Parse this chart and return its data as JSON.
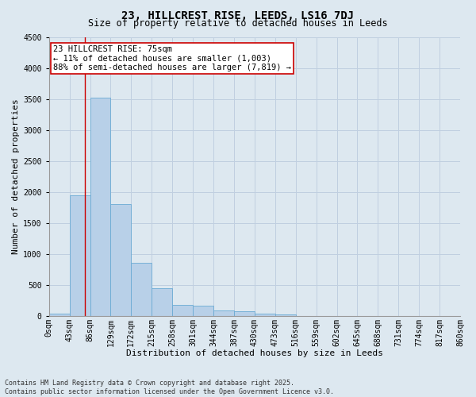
{
  "title": "23, HILLCREST RISE, LEEDS, LS16 7DJ",
  "subtitle": "Size of property relative to detached houses in Leeds",
  "xlabel": "Distribution of detached houses by size in Leeds",
  "ylabel": "Number of detached properties",
  "bar_values": [
    30,
    1950,
    3520,
    1800,
    850,
    440,
    175,
    170,
    90,
    70,
    40,
    25,
    0,
    0,
    0,
    0,
    0,
    0,
    0,
    0
  ],
  "bin_labels": [
    "0sqm",
    "43sqm",
    "86sqm",
    "129sqm",
    "172sqm",
    "215sqm",
    "258sqm",
    "301sqm",
    "344sqm",
    "387sqm",
    "430sqm",
    "473sqm",
    "516sqm",
    "559sqm",
    "602sqm",
    "645sqm",
    "688sqm",
    "731sqm",
    "774sqm",
    "817sqm",
    "860sqm"
  ],
  "bar_color": "#b8d0e8",
  "bar_edge_color": "#6aaad4",
  "grid_color": "#c0cfe0",
  "bg_color": "#dde8f0",
  "vline_x_bin": 1.75,
  "vline_color": "#cc0000",
  "annotation_text": "23 HILLCREST RISE: 75sqm\n← 11% of detached houses are smaller (1,003)\n88% of semi-detached houses are larger (7,819) →",
  "annotation_box_facecolor": "#ffffff",
  "annotation_border_color": "#cc0000",
  "ylim": [
    0,
    4500
  ],
  "yticks": [
    0,
    500,
    1000,
    1500,
    2000,
    2500,
    3000,
    3500,
    4000,
    4500
  ],
  "n_bins": 20,
  "bin_width": 43,
  "footnote": "Contains HM Land Registry data © Crown copyright and database right 2025.\nContains public sector information licensed under the Open Government Licence v3.0.",
  "title_fontsize": 10,
  "subtitle_fontsize": 8.5,
  "axis_label_fontsize": 8,
  "tick_fontsize": 7,
  "annotation_fontsize": 7.5,
  "footnote_fontsize": 6
}
